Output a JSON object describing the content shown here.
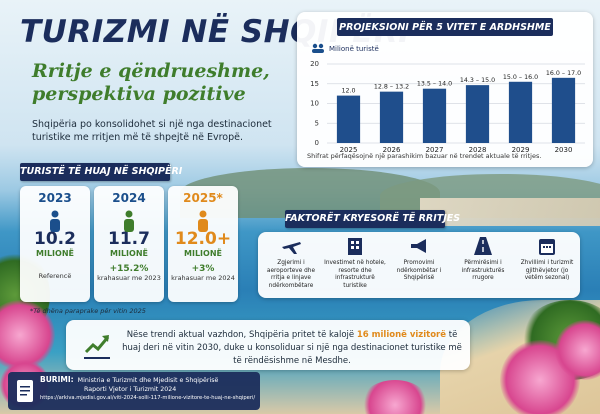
{
  "header": {
    "title": "TURIZMI NË SHQIPËRI",
    "subtitle": "Rritje e qëndrueshme, perspektiva pozitive",
    "lead": "Shqipëria po konsolidohet si një nga destinacionet turistike me rritjen më të shpejtë në Evropë."
  },
  "tourists": {
    "title": "TURISTË TË HUAJ NË SHQIPËRI",
    "cards": [
      {
        "year": "2023",
        "value": "10.2",
        "unit": "MILIONË",
        "note": "Referencë"
      },
      {
        "year": "2024",
        "value": "11.7",
        "unit": "MILIONË",
        "change": "+15.2%",
        "note": "krahasuar me 2023"
      },
      {
        "year": "2025*",
        "value": "12.0+",
        "unit": "MILIONË",
        "change": "+3%",
        "note": "krahasuar me 2024"
      }
    ],
    "footnote": "*Të dhëna paraprake për vitin 2025"
  },
  "chart_data": {
    "type": "bar",
    "title": "PROJEKSIONI PËR 5 VITET E ARDHSHME",
    "y_label": "Milionë turistë",
    "categories": [
      "2025",
      "2026",
      "2027",
      "2028",
      "2029",
      "2030"
    ],
    "values": [
      12.0,
      13.0,
      13.75,
      14.65,
      15.5,
      16.5
    ],
    "value_labels": [
      "12.0",
      "12.8 – 13.2",
      "13.5 – 14.0",
      "14.3 – 15.0",
      "15.0 – 16.0",
      "16.0 – 17.0"
    ],
    "color": "#1f4e8c",
    "ylim": [
      0,
      20
    ],
    "yticks": [
      0,
      5,
      10,
      15,
      20
    ],
    "grid": true,
    "note": "Shifrat përfaqësojnë një parashikim bazuar në trendet aktuale të rritjes."
  },
  "factors": {
    "title": "FAKTORËT KRYESORË TË RRITJES",
    "items": [
      "Zgjerimi i aeroporteve dhe rritja e linjave ndërkombëtare",
      "Investimet në hotele, resorte dhe infrastrukturë turistike",
      "Promovimi ndërkombëtar i Shqipërisë",
      "Përmirësimi i infrastrukturës rrugore",
      "Zhvillimi i turizmit gjithëvjetor (jo vetëm sezonal)"
    ]
  },
  "outlook": {
    "before": "Nëse trendi aktual vazhdon, Shqipëria pritet të kalojë",
    "highlight": "16 milionë vizitorë",
    "after": "të huaj deri në vitin 2030, duke u konsoliduar si një nga destinacionet turistike më të rëndësishme në Mesdhe."
  },
  "source": {
    "label": "BURIMI:",
    "lines": [
      "Ministria e Turizmit dhe Mjedisit e Shqipërisë",
      "Raporti Vjetor i Turizmit 2024",
      "https://arkiva.mjedisi.gov.al/viti-2024-solli-117-milione-vizitore-te-huaj-ne-shqiperi/"
    ]
  }
}
